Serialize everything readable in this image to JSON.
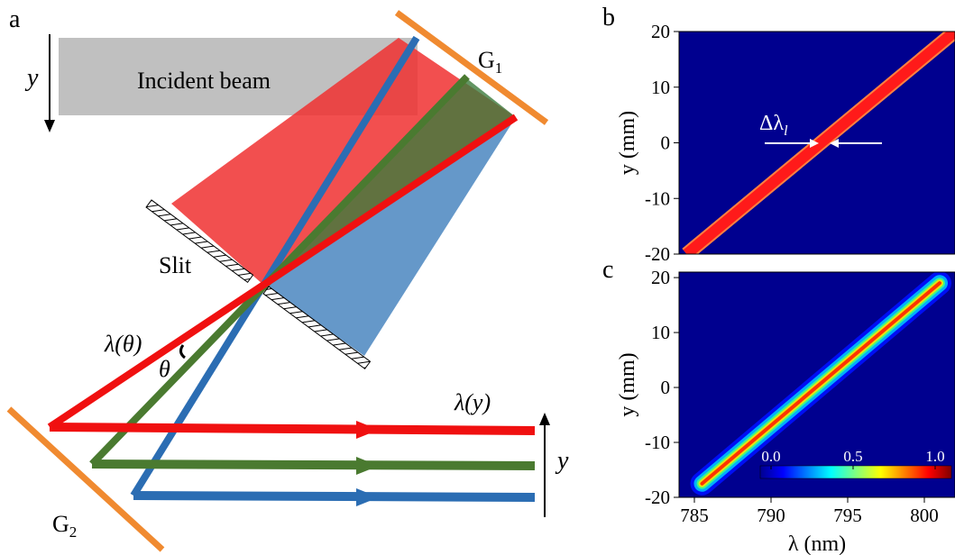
{
  "panel_labels": {
    "a": "a",
    "b": "b",
    "c": "c"
  },
  "diagram": {
    "incident_beam": "Incident beam",
    "g1": "G",
    "g1_sub": "1",
    "g2": "G",
    "g2_sub": "2",
    "slit": "Slit",
    "lambda_theta": "λ(θ)",
    "theta": "θ",
    "lambda_y": "λ(y)",
    "y_incident": "y",
    "y_output": "y"
  },
  "chart_data": [
    {
      "type": "band",
      "ylabel": "y (mm)",
      "annotation": "Δλ",
      "annotation_sub": "l",
      "xlim": [
        784,
        802
      ],
      "ylim": [
        -20,
        20
      ],
      "yticks": [
        -20,
        -10,
        0,
        10,
        20
      ],
      "x": [
        784.5,
        802
      ],
      "values": [
        -20,
        20
      ],
      "color": "#ff1a1a",
      "background": "#00008f"
    },
    {
      "type": "distribution",
      "ylabel": "y (mm)",
      "xlabel": "λ (nm)",
      "xlim": [
        784,
        802
      ],
      "ylim": [
        -20,
        21
      ],
      "xticks": [
        785,
        790,
        795,
        800
      ],
      "yticks": [
        -20,
        -10,
        0,
        10,
        20
      ],
      "x": [
        785.5,
        801
      ],
      "values": [
        -17.5,
        19
      ],
      "background": "#00008f",
      "colorbar_ticks": [
        {
          "value": 0,
          "label": "0.0"
        },
        {
          "value": 0.5,
          "label": "0.5"
        },
        {
          "value": 1,
          "label": "1.0"
        }
      ]
    }
  ]
}
